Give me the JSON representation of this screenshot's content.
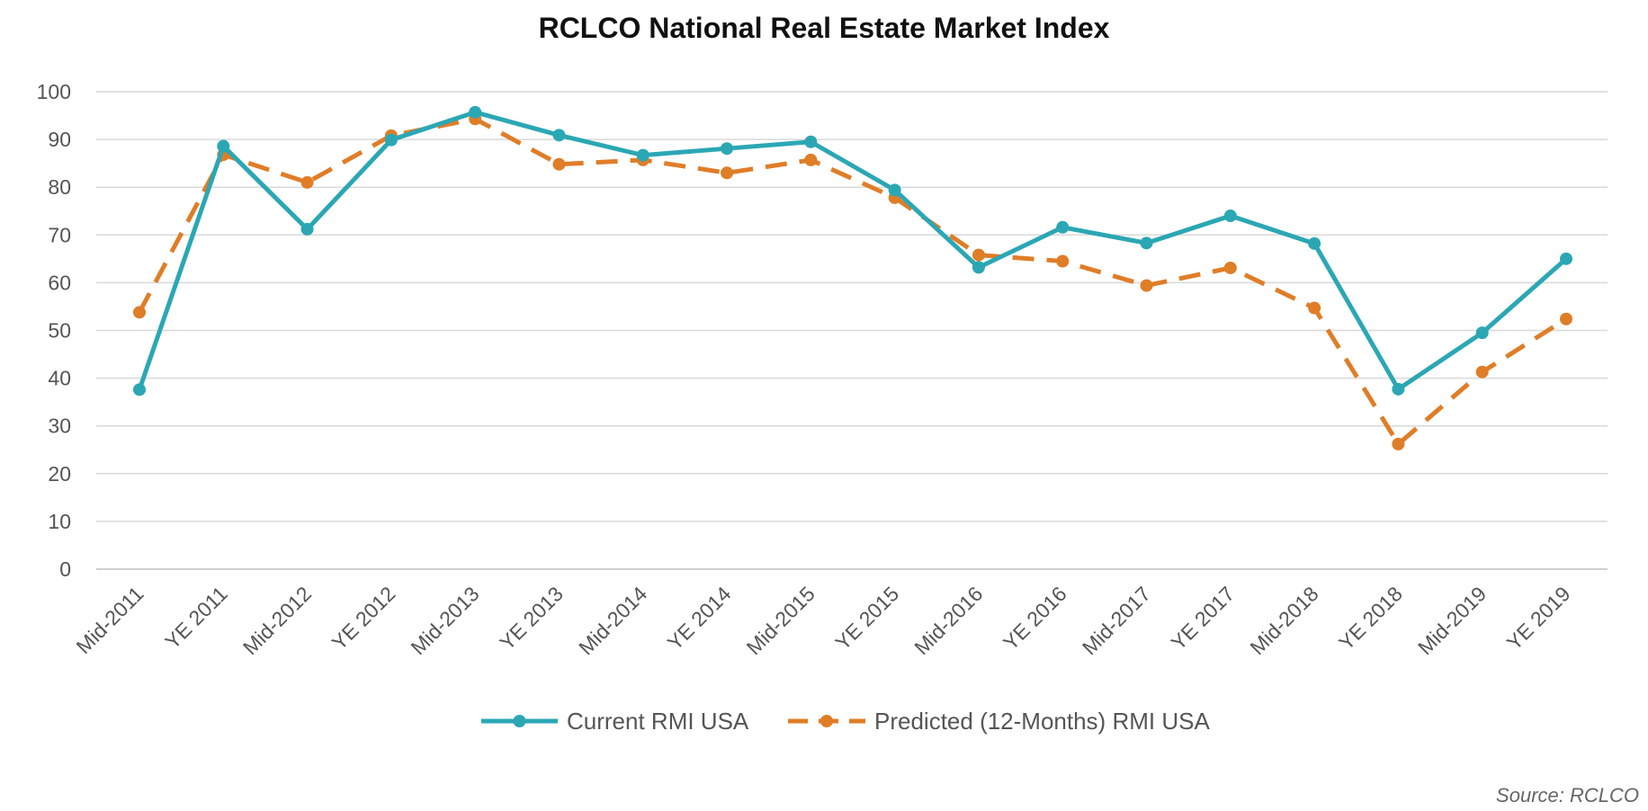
{
  "chart_data": {
    "type": "line",
    "title": "RCLCO National Real Estate Market Index",
    "xlabel": "",
    "ylabel": "",
    "ylim": [
      0,
      100
    ],
    "yticks": [
      0,
      10,
      20,
      30,
      40,
      50,
      60,
      70,
      80,
      90,
      100
    ],
    "grid": true,
    "legend_position": "bottom",
    "categories": [
      "Mid-2011",
      "YE 2011",
      "Mid-2012",
      "YE 2012",
      "Mid-2013",
      "YE 2013",
      "Mid-2014",
      "YE 2014",
      "Mid-2015",
      "YE 2015",
      "Mid-2016",
      "YE 2016",
      "Mid-2017",
      "YE 2017",
      "Mid-2018",
      "YE 2018",
      "Mid-2019",
      "YE 2019"
    ],
    "series": [
      {
        "name": "Current RMI USA",
        "color": "#2ba7b4",
        "style": "solid",
        "values": [
          37.6,
          88.6,
          71.2,
          89.9,
          95.7,
          90.9,
          86.7,
          88.1,
          89.5,
          79.4,
          63.2,
          71.6,
          68.3,
          74.0,
          68.2,
          37.7,
          49.5,
          65.0
        ]
      },
      {
        "name": "Predicted (12-Months) RMI USA",
        "color": "#e07d27",
        "style": "dashed",
        "values": [
          53.8,
          86.8,
          81.0,
          90.8,
          94.3,
          84.8,
          85.7,
          83.0,
          85.7,
          77.8,
          65.8,
          64.5,
          59.4,
          63.1,
          54.7,
          26.2,
          41.3,
          52.4
        ]
      }
    ]
  },
  "source_note": "Source: RCLCO"
}
